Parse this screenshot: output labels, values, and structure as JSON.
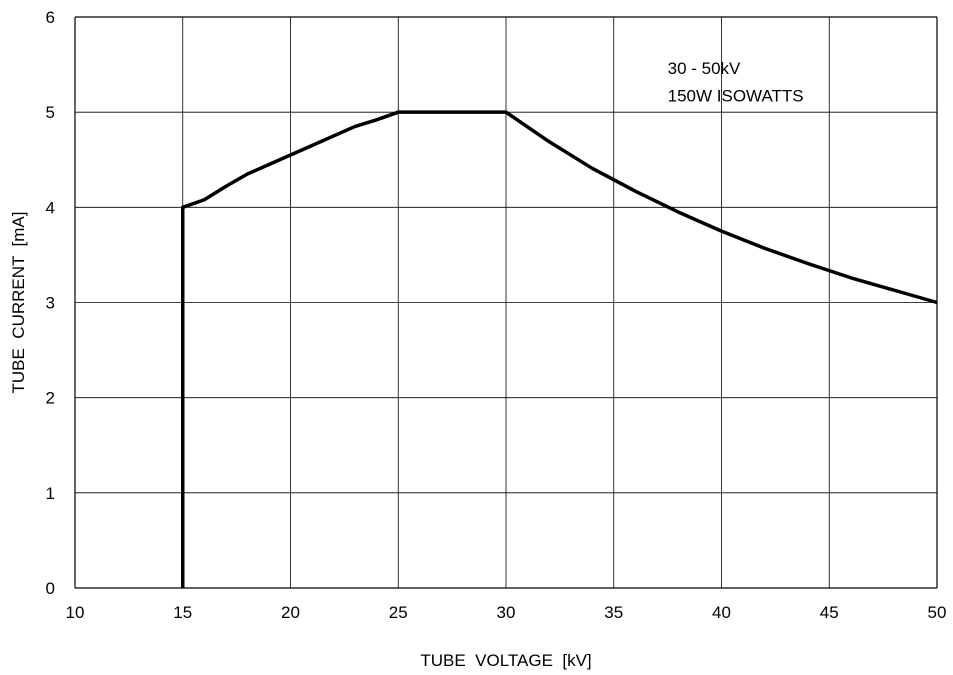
{
  "chart_data": {
    "type": "line",
    "title": "",
    "xlabel": "TUBE  VOLTAGE  [kV]",
    "ylabel": "TUBE  CURRENT  [mA]",
    "xlim": [
      10,
      50
    ],
    "ylim": [
      0,
      6
    ],
    "x_ticks": [
      "10",
      "15",
      "20",
      "25",
      "30",
      "35",
      "40",
      "45",
      "50"
    ],
    "y_ticks": [
      "0",
      "1",
      "2",
      "3",
      "4",
      "5",
      "6"
    ],
    "grid": true,
    "line_color": "#000000",
    "series": [
      {
        "points": [
          [
            15,
            0
          ],
          [
            15,
            4.0
          ],
          [
            16,
            4.08
          ],
          [
            17,
            4.22
          ],
          [
            18,
            4.35
          ],
          [
            19,
            4.45
          ],
          [
            20,
            4.55
          ],
          [
            21,
            4.65
          ],
          [
            22,
            4.75
          ],
          [
            23,
            4.85
          ],
          [
            24,
            4.92
          ],
          [
            25,
            5.0
          ],
          [
            30,
            5.0
          ],
          [
            32,
            4.69
          ],
          [
            34,
            4.41
          ],
          [
            36,
            4.17
          ],
          [
            38,
            3.95
          ],
          [
            40,
            3.75
          ],
          [
            42,
            3.57
          ],
          [
            44,
            3.41
          ],
          [
            46,
            3.26
          ],
          [
            48,
            3.13
          ],
          [
            50,
            3.0
          ]
        ]
      }
    ],
    "annotations": [
      {
        "text": "30 - 50kV",
        "x": 37.5,
        "y": 5.4
      },
      {
        "text": "150W ISOWATTS",
        "x": 37.5,
        "y": 5.11
      }
    ]
  }
}
